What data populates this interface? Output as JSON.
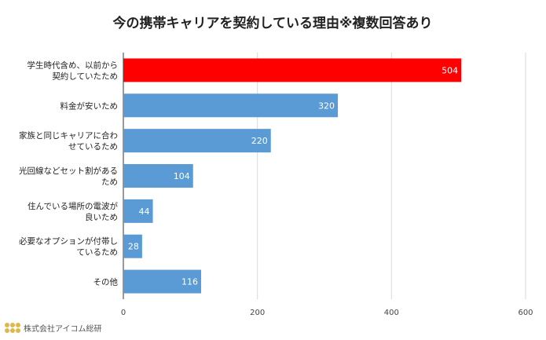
{
  "chart_data": {
    "type": "bar",
    "orientation": "horizontal",
    "title": "今の携帯キャリアを契約している理由※複数回答あり",
    "categories": [
      [
        "学生時代含め、以前から",
        "契約していたため"
      ],
      [
        "料金が安いため"
      ],
      [
        "家族と同じキャリアに合わ",
        "せているため"
      ],
      [
        "光回線などセット割がある",
        "ため"
      ],
      [
        "住んでいる場所の電波が",
        "良いため"
      ],
      [
        "必要なオプションが付帯し",
        "ているため"
      ],
      [
        "その他"
      ]
    ],
    "values": [
      504,
      320,
      220,
      104,
      44,
      28,
      116
    ],
    "xlim": [
      0,
      600
    ],
    "xticks": [
      0,
      200,
      400,
      600
    ],
    "grid": true,
    "colors": {
      "highlight": "#ff0000",
      "default": "#5b9bd5",
      "grid": "#d9d9d9",
      "axis": "#333333"
    },
    "highlight_index": 0
  },
  "footer": {
    "company": "株式会社アイコム総研",
    "logo_icon": "dot-grid-logo-icon"
  }
}
